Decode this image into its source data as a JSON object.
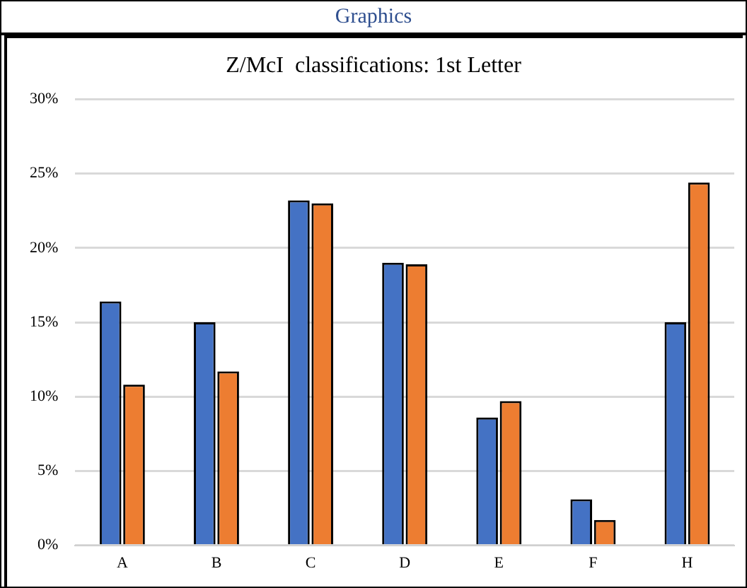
{
  "chart_data": {
    "type": "bar",
    "title": "Z/McI  classifications: 1st Letter",
    "annotations": [
      "Graphics"
    ],
    "categories": [
      "A",
      "B",
      "C",
      "D",
      "E",
      "F",
      "H"
    ],
    "series": [
      {
        "color": "#4472c4",
        "values": [
          16.4,
          15.0,
          23.2,
          19.0,
          8.6,
          3.1,
          15.0
        ]
      },
      {
        "color": "#ed7d31",
        "values": [
          10.8,
          11.7,
          23.0,
          18.9,
          9.7,
          1.7,
          24.4
        ]
      }
    ],
    "ylim": [
      0,
      30
    ],
    "yticks": [
      {
        "value": 0,
        "label": "0%"
      },
      {
        "value": 5,
        "label": "5%"
      },
      {
        "value": 10,
        "label": "10%"
      },
      {
        "value": 15,
        "label": "15%"
      },
      {
        "value": 20,
        "label": "20%"
      },
      {
        "value": 25,
        "label": "25%"
      },
      {
        "value": 30,
        "label": "30%"
      }
    ],
    "grid": "y"
  }
}
